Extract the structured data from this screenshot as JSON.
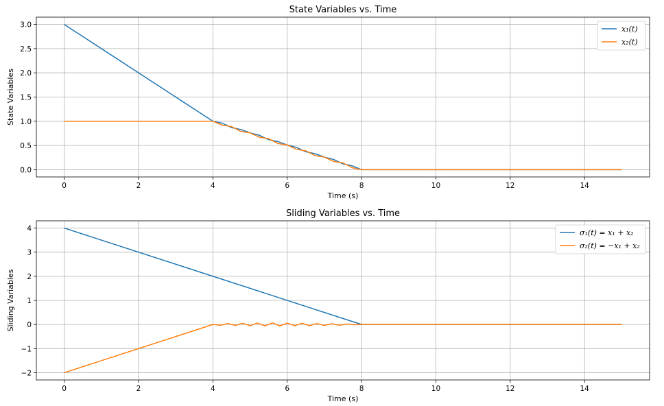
{
  "colors": {
    "series1": "#1f77b4",
    "series2": "#ff7f0e"
  },
  "chart_data": [
    {
      "type": "line",
      "title": "State Variables vs. Time",
      "xlabel": "Time (s)",
      "ylabel": "State Variables",
      "xlim": [
        -0.75,
        15.75
      ],
      "ylim": [
        -0.15,
        3.15
      ],
      "xticks": [
        0,
        2,
        4,
        6,
        8,
        10,
        12,
        14
      ],
      "yticks": [
        0.0,
        0.5,
        1.0,
        1.5,
        2.0,
        2.5,
        3.0
      ],
      "ytick_labels": [
        "0.0",
        "0.5",
        "1.0",
        "1.5",
        "2.0",
        "2.5",
        "3.0"
      ],
      "grid": true,
      "legend": "top-right",
      "series": [
        {
          "name": "x₁(t)",
          "x": [
            0,
            4,
            4.25,
            4.5,
            4.75,
            5.0,
            5.25,
            5.5,
            5.75,
            6.0,
            6.25,
            6.5,
            6.75,
            7.0,
            7.25,
            7.5,
            7.75,
            8,
            15
          ],
          "y": [
            3.0,
            1.0,
            0.96,
            0.87,
            0.83,
            0.76,
            0.71,
            0.62,
            0.58,
            0.51,
            0.46,
            0.37,
            0.33,
            0.26,
            0.21,
            0.12,
            0.08,
            0.0,
            0.0
          ]
        },
        {
          "name": "x₂(t)",
          "x": [
            0,
            4,
            4.25,
            4.5,
            4.75,
            5.0,
            5.25,
            5.5,
            5.75,
            6.0,
            6.25,
            6.5,
            6.75,
            7.0,
            7.25,
            7.5,
            7.75,
            8,
            15
          ],
          "y": [
            1.0,
            1.0,
            0.92,
            0.89,
            0.79,
            0.76,
            0.67,
            0.64,
            0.54,
            0.51,
            0.42,
            0.39,
            0.29,
            0.26,
            0.17,
            0.14,
            0.04,
            0.0,
            0.0
          ]
        }
      ]
    },
    {
      "type": "line",
      "title": "Sliding Variables vs. Time",
      "xlabel": "Time (s)",
      "ylabel": "Sliding Variables",
      "xlim": [
        -0.75,
        15.75
      ],
      "ylim": [
        -2.3,
        4.3
      ],
      "xticks": [
        0,
        2,
        4,
        6,
        8,
        10,
        12,
        14
      ],
      "yticks": [
        -2,
        -1,
        0,
        1,
        2,
        3,
        4
      ],
      "ytick_labels": [
        "−2",
        "−1",
        "0",
        "1",
        "2",
        "3",
        "4"
      ],
      "grid": true,
      "legend": "top-right",
      "series": [
        {
          "name": "σ₁(t) = x₁ + x₂",
          "x": [
            0,
            8,
            15
          ],
          "y": [
            4.0,
            0.0,
            0.0
          ]
        },
        {
          "name": "σ₂(t) = −x₁ + x₂",
          "x": [
            0,
            4,
            4.2,
            4.4,
            4.6,
            4.8,
            5.0,
            5.2,
            5.4,
            5.6,
            5.8,
            6.0,
            6.2,
            6.4,
            6.6,
            6.8,
            7.0,
            7.2,
            7.4,
            7.6,
            7.8,
            8,
            15
          ],
          "y": [
            -2.0,
            0.0,
            -0.03,
            0.04,
            -0.04,
            0.05,
            -0.05,
            0.06,
            -0.06,
            0.07,
            -0.06,
            0.06,
            -0.05,
            0.05,
            -0.05,
            0.04,
            -0.04,
            0.03,
            -0.03,
            0.02,
            -0.01,
            0.0,
            0.0
          ]
        }
      ]
    }
  ]
}
